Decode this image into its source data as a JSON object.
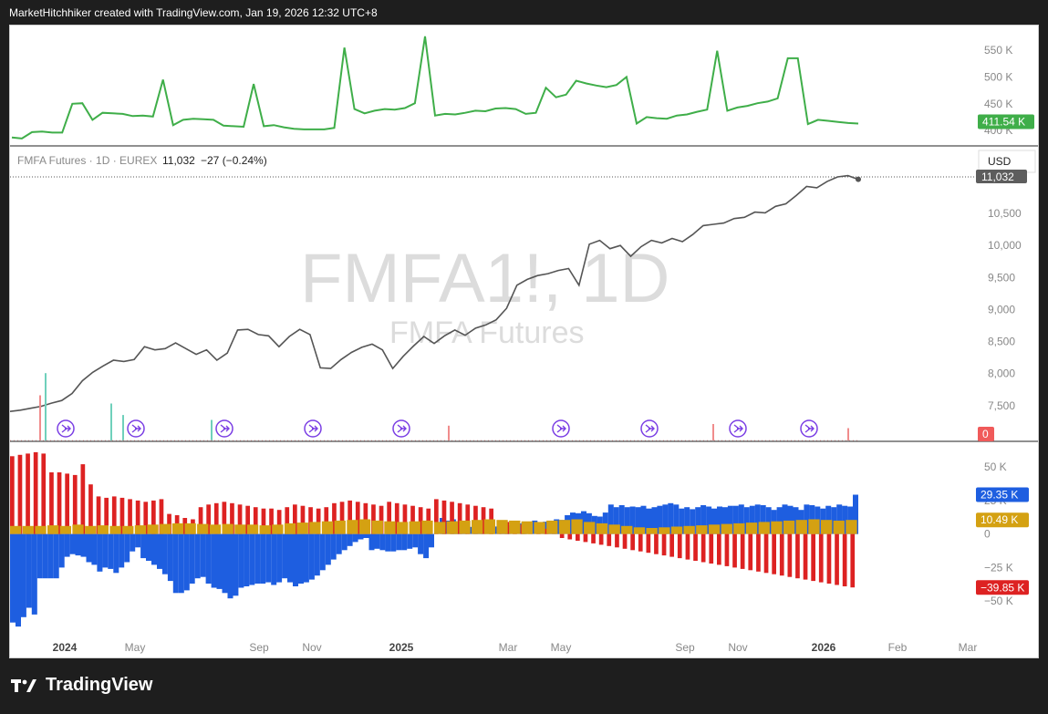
{
  "header": {
    "caption": "MarketHitchhiker created with TradingView.com, Jan 19, 2026 12:32 UTC+8"
  },
  "brand": {
    "name": "TradingView",
    "icon": "tradingview-logo-icon"
  },
  "symbol": {
    "watermark_ticker": "FMFA1!, 1D",
    "watermark_name": "FMFA Futures",
    "legend_name": "FMFA Futures · 1D · EUREX",
    "last": "11,032",
    "change": "−27 (−0.24%)",
    "currency": "USD",
    "last_badge": "11,032"
  },
  "colors": {
    "oi_line": "#3fae49",
    "oi_badge": "#3fae49",
    "price_line": "#555555",
    "long": "#1e5ee0",
    "short": "#dd2222",
    "net": "#d4a112",
    "volume_badge": "#f05a5a",
    "roll_marker": "#7b3fe4"
  },
  "chart_data": [
    {
      "type": "line",
      "pane": "top",
      "series": [
        {
          "values": [
            387,
            385,
            397,
            398,
            396,
            396,
            450,
            451,
            420,
            433,
            432,
            431,
            427,
            428,
            426,
            495,
            410,
            420,
            422,
            421,
            420,
            409,
            408,
            407,
            487,
            408,
            410,
            406,
            403,
            402,
            402,
            402,
            405,
            555,
            440,
            432,
            437,
            440,
            439,
            442,
            451,
            576,
            428,
            431,
            430,
            433,
            437,
            436,
            441,
            442,
            440,
            431,
            433,
            480,
            462,
            467,
            493,
            488,
            484,
            481,
            485,
            500,
            413,
            425,
            423,
            422,
            428,
            430,
            435,
            439,
            549,
            437,
            443,
            446,
            451,
            454,
            460,
            535,
            535,
            412,
            420,
            418,
            416,
            414,
            413
          ]
        }
      ],
      "yticks": [
        "550 K",
        "500 K",
        "450 K",
        "400 K"
      ],
      "ylim": [
        378,
        586
      ],
      "last_label": "411.54 K"
    },
    {
      "type": "line",
      "pane": "main",
      "series": [
        {
          "values": [
            7410,
            7430,
            7460,
            7490,
            7540,
            7580,
            7690,
            7890,
            8020,
            8120,
            8210,
            8190,
            8220,
            8420,
            8370,
            8390,
            8480,
            8390,
            8300,
            8370,
            8210,
            8320,
            8680,
            8690,
            8610,
            8590,
            8420,
            8580,
            8690,
            8610,
            8090,
            8080,
            8220,
            8330,
            8410,
            8460,
            8370,
            8080,
            8270,
            8430,
            8580,
            8470,
            8590,
            8680,
            8600,
            8710,
            8760,
            8840,
            9020,
            9380,
            9470,
            9530,
            9560,
            9610,
            9640,
            9380,
            10020,
            10080,
            9950,
            10000,
            9830,
            9980,
            10080,
            10040,
            10110,
            10060,
            10170,
            10310,
            10330,
            10350,
            10420,
            10440,
            10520,
            10510,
            10610,
            10650,
            10780,
            10920,
            10900,
            11000,
            11070,
            11090,
            11032
          ]
        }
      ],
      "yticks": [
        "10,500",
        "10,000",
        "9,500",
        "9,000",
        "8,500",
        "8,000",
        "7,500"
      ],
      "ylim": [
        7000,
        11440
      ],
      "volume_spikes": [
        0.55,
        0.82,
        0.45,
        0.31,
        0.25,
        0.18,
        0.2,
        0.15
      ],
      "volume_label": "0",
      "roll_marker_count": 9
    },
    {
      "type": "bar",
      "pane": "bottom",
      "series": [
        {
          "values": [
            -66000,
            -69000,
            -62000,
            -55000,
            -60000,
            -33000,
            -33000,
            -33000,
            -33000,
            -25000,
            -17000,
            -15000,
            -16000,
            -17000,
            -21000,
            -23000,
            -28000,
            -25000,
            -26000,
            -29000,
            -25000,
            -21000,
            -13000,
            -10000,
            -18000,
            -20000,
            -23000,
            -26000,
            -30000,
            -35000,
            -44000,
            -44000,
            -42000,
            -37000,
            -33000,
            -32000,
            -37000,
            -40000,
            -41000,
            -44000,
            -48000,
            -46000,
            -40000,
            -39000,
            -38000,
            -37000,
            -37000,
            -36000,
            -38000,
            -36000,
            -33000,
            -36000,
            -39000,
            -37000,
            -36000,
            -34000,
            -31000,
            -27000,
            -23000,
            -19000,
            -15000,
            -12000,
            -9000,
            -6000,
            -4000,
            -3000,
            -12000,
            -11000,
            -12000,
            -13000,
            -13000,
            -12000,
            -12000,
            -11000,
            -10000,
            -15000,
            -18000,
            -10000,
            9000,
            12000,
            10000,
            11000,
            9500,
            8600,
            5300,
            4800,
            5000,
            5100,
            5300,
            5600,
            8000,
            6500,
            7000,
            7900,
            8400,
            9000,
            10000,
            8700,
            9200,
            9500,
            11000,
            10500,
            14000,
            16000,
            15500,
            17000,
            15500,
            13500,
            13000,
            16000,
            22000,
            20000,
            21500,
            20000,
            20500,
            20000,
            21000,
            19000,
            20000,
            21000,
            22000,
            23000,
            22000,
            19000,
            20000,
            18500,
            20000,
            21500,
            20500,
            19000,
            20500,
            20000,
            21000,
            21000,
            22000,
            20000,
            21000,
            22000,
            21500,
            20000,
            18000,
            20000,
            22000,
            21000,
            20000,
            18000,
            22000,
            21500,
            20500,
            19000,
            21000,
            20000,
            22000,
            21000,
            20500,
            29350
          ],
          "name": "long"
        },
        {
          "values": [
            58000,
            59000,
            60000,
            61000,
            60000,
            46000,
            46000,
            45000,
            44000,
            52000,
            37000,
            28000,
            27000,
            28000,
            27000,
            26000,
            25000,
            24000,
            25000,
            26000,
            15000,
            14000,
            12000,
            11000,
            20000,
            22000,
            23000,
            24000,
            23000,
            22000,
            21000,
            20000,
            19000,
            19000,
            18000,
            20000,
            22000,
            21000,
            20000,
            19000,
            20000,
            23000,
            24000,
            25000,
            24000,
            23000,
            22000,
            21000,
            24000,
            23000,
            22000,
            21000,
            20000,
            19000,
            26000,
            25000,
            24000,
            23000,
            22000,
            21000,
            20000,
            19000,
            10000,
            9000,
            8000,
            7000,
            6000,
            5000,
            4000,
            3000,
            -3000,
            -4000,
            -5000,
            -6000,
            -7000,
            -8000,
            -9000,
            -10000,
            -11000,
            -12000,
            -13000,
            -14000,
            -15000,
            -16000,
            -17000,
            -18000,
            -19000,
            -20000,
            -21000,
            -22000,
            -23000,
            -24000,
            -25000,
            -26000,
            -27000,
            -28000,
            -29000,
            -30000,
            -31000,
            -32000,
            -33000,
            -34000,
            -35000,
            -36000,
            -37000,
            -38000,
            -39000,
            -39850
          ],
          "name": "short"
        },
        {
          "values": [
            6000,
            6000,
            6000,
            6500,
            6000,
            7000,
            6000,
            6500,
            6000,
            6000,
            6500,
            7000,
            7500,
            8000,
            8000,
            7500,
            7000,
            7500,
            7000,
            7000,
            6500,
            7000,
            8000,
            8500,
            9000,
            9500,
            10000,
            10500,
            11000,
            10000,
            9500,
            9000,
            9500,
            10000,
            9000,
            9500,
            10000,
            10500,
            11000,
            10500,
            10000,
            9500,
            9000,
            10000,
            10500,
            11000,
            9000,
            8000,
            7000,
            6000,
            5000,
            4500,
            5000,
            5500,
            6000,
            6500,
            7000,
            7500,
            8000,
            8500,
            9000,
            9500,
            10000,
            10500,
            11000,
            10500,
            10000,
            10490
          ],
          "name": "net"
        }
      ],
      "yticks": [
        "50 K",
        "25 K",
        "0",
        "−25 K",
        "−50 K"
      ],
      "ylim": [
        -75000,
        65000
      ],
      "last_labels": [
        "29.35 K",
        "10.49 K",
        "−39.85 K"
      ]
    }
  ],
  "x_axis": {
    "labels": [
      "2024",
      "May",
      "Sep",
      "Nov",
      "2025",
      "Mar",
      "May",
      "Sep",
      "Nov",
      "2026",
      "Feb",
      "Mar"
    ]
  }
}
